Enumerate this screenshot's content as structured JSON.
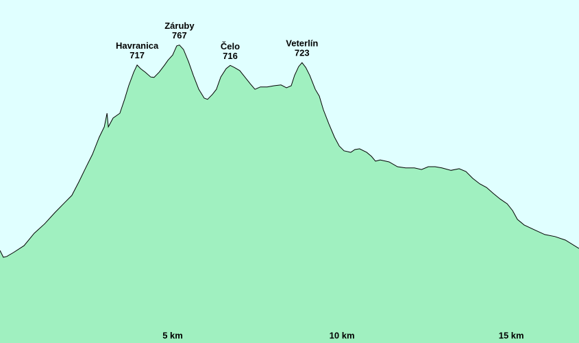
{
  "chart_data": {
    "type": "area",
    "x": [
      -0.1,
      0.0,
      0.1,
      0.3,
      0.61,
      0.91,
      1.22,
      1.52,
      1.82,
      2.02,
      2.23,
      2.43,
      2.63,
      2.83,
      2.98,
      3.06,
      3.1,
      3.24,
      3.44,
      3.58,
      3.7,
      3.85,
      3.95,
      4.05,
      4.19,
      4.35,
      4.45,
      4.6,
      4.76,
      4.86,
      5.0,
      5.12,
      5.2,
      5.32,
      5.47,
      5.61,
      5.77,
      5.93,
      6.03,
      6.17,
      6.29,
      6.42,
      6.58,
      6.7,
      6.82,
      6.98,
      7.14,
      7.29,
      7.43,
      7.59,
      7.79,
      7.99,
      8.2,
      8.36,
      8.5,
      8.6,
      8.72,
      8.82,
      8.93,
      9.05,
      9.21,
      9.33,
      9.45,
      9.61,
      9.78,
      9.92,
      10.06,
      10.26,
      10.38,
      10.52,
      10.73,
      10.87,
      10.99,
      11.13,
      11.39,
      11.64,
      11.88,
      12.14,
      12.35,
      12.55,
      12.75,
      12.95,
      13.22,
      13.46,
      13.66,
      13.86,
      14.07,
      14.27,
      14.47,
      14.67,
      14.88,
      15.04,
      15.18,
      15.38,
      15.68,
      15.99,
      16.29,
      16.6,
      17.0
    ],
    "values": [
      252,
      235,
      237,
      247,
      264,
      295,
      319,
      347,
      373,
      390,
      424,
      459,
      493,
      536,
      562,
      596,
      562,
      584,
      596,
      631,
      665,
      699,
      717,
      708,
      699,
      687,
      686,
      699,
      717,
      729,
      742,
      765,
      767,
      756,
      725,
      691,
      656,
      634,
      631,
      643,
      656,
      687,
      708,
      716,
      711,
      703,
      686,
      670,
      656,
      662,
      662,
      665,
      667,
      660,
      665,
      691,
      713,
      723,
      711,
      691,
      656,
      639,
      605,
      570,
      536,
      514,
      502,
      498,
      505,
      507,
      498,
      488,
      476,
      479,
      474,
      462,
      459,
      459,
      455,
      462,
      462,
      459,
      453,
      457,
      450,
      433,
      419,
      410,
      395,
      381,
      369,
      352,
      330,
      316,
      304,
      292,
      287,
      278,
      257
    ],
    "color": "#a0f0c0",
    "line_color": "#000000",
    "background": "#e0ffff",
    "xlim": [
      -0.1,
      17.0
    ],
    "ylim": [
      20,
      880
    ],
    "xticks": [
      {
        "value": 5,
        "label": "5 km"
      },
      {
        "value": 10,
        "label": "10 km"
      },
      {
        "value": 15,
        "label": "15 km"
      }
    ],
    "annotations": [
      {
        "text": "Havranica",
        "value": 717,
        "x": 3.95
      },
      {
        "text": "Záruby",
        "value": 767,
        "x": 5.2
      },
      {
        "text": "Čelo",
        "value": 716,
        "x": 6.7
      },
      {
        "text": "Veterlín",
        "value": 723,
        "x": 8.82
      }
    ]
  }
}
